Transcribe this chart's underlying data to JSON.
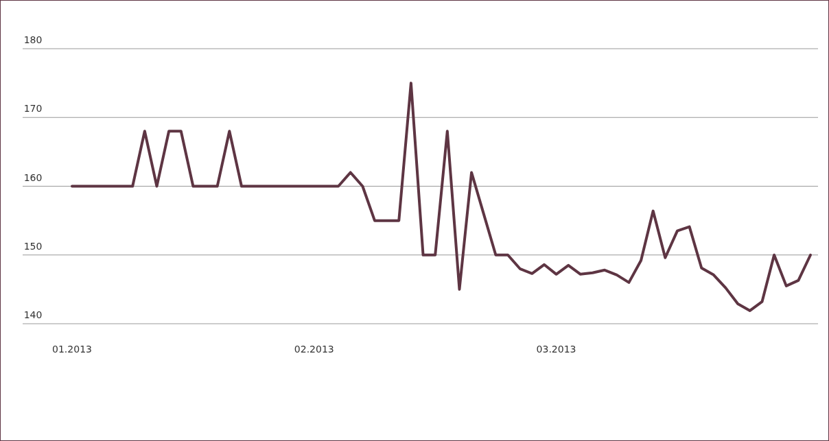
{
  "chart_data": {
    "type": "line",
    "categories": [
      "01.2013",
      null,
      null,
      null,
      null,
      null,
      null,
      null,
      null,
      null,
      null,
      null,
      null,
      null,
      null,
      null,
      null,
      null,
      null,
      null,
      "02.2013",
      null,
      null,
      null,
      null,
      null,
      null,
      null,
      null,
      null,
      null,
      null,
      null,
      null,
      null,
      null,
      null,
      null,
      null,
      null,
      "03.2013",
      null,
      null,
      null,
      null,
      null,
      null,
      null,
      null,
      null,
      null,
      null,
      null,
      null,
      null,
      null,
      null,
      null,
      null,
      null,
      null,
      null
    ],
    "series": [
      {
        "color": "#5e3543",
        "values": [
          160,
          160,
          160,
          160,
          160,
          160,
          168,
          160,
          168,
          168,
          160,
          160,
          160,
          168,
          160,
          160,
          160,
          160,
          160,
          160,
          160,
          160,
          160,
          162,
          160,
          155,
          155,
          155,
          175,
          150,
          150,
          168,
          145,
          162,
          156,
          150,
          150,
          148,
          147.3,
          148.6,
          147.2,
          148.5,
          147.2,
          147.4,
          147.8,
          147.1,
          146,
          149.2,
          156.4,
          149.6,
          153.5,
          154.1,
          148.1,
          147.1,
          145.2,
          142.9,
          141.9,
          143.2,
          150,
          145.5,
          146.3,
          150
        ]
      }
    ],
    "ylim": [
      140,
      180
    ],
    "yticks": [
      140,
      150,
      160,
      170,
      180
    ],
    "grid": "y",
    "line_style": "solid",
    "marker": "none"
  }
}
